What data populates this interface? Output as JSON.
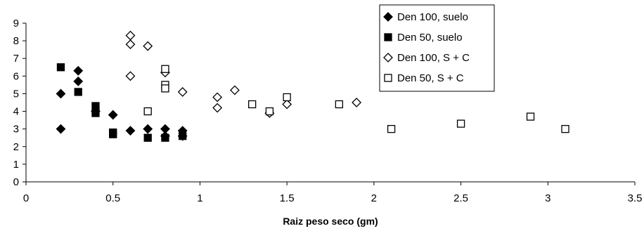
{
  "chart_data": {
    "type": "scatter",
    "title": "",
    "xlabel": "Raiz peso seco (gm)",
    "ylabel": "",
    "xlim": [
      0,
      3.5
    ],
    "ylim": [
      0,
      9
    ],
    "xticks": [
      "0",
      "0.5",
      "1",
      "1.5",
      "2",
      "2.5",
      "3",
      "3.5"
    ],
    "yticks": [
      "0",
      "1",
      "2",
      "3",
      "4",
      "5",
      "6",
      "7",
      "8",
      "9"
    ],
    "grid": false,
    "legend_position": "top-right",
    "series": [
      {
        "name": "Den 100, suelo",
        "marker": "filled-diamond",
        "color": "#000000",
        "points": [
          [
            0.2,
            5.0
          ],
          [
            0.2,
            3.0
          ],
          [
            0.3,
            6.3
          ],
          [
            0.3,
            5.7
          ],
          [
            0.4,
            4.0
          ],
          [
            0.5,
            3.8
          ],
          [
            0.6,
            2.9
          ],
          [
            0.7,
            3.0
          ],
          [
            0.8,
            3.0
          ],
          [
            0.8,
            2.6
          ],
          [
            0.9,
            2.9
          ],
          [
            0.9,
            2.6
          ]
        ]
      },
      {
        "name": "Den 50, suelo",
        "marker": "filled-square",
        "color": "#000000",
        "points": [
          [
            0.2,
            6.5
          ],
          [
            0.3,
            5.1
          ],
          [
            0.4,
            4.3
          ],
          [
            0.4,
            3.9
          ],
          [
            0.5,
            2.8
          ],
          [
            0.5,
            2.7
          ],
          [
            0.7,
            2.5
          ],
          [
            0.8,
            2.5
          ],
          [
            0.9,
            2.6
          ]
        ]
      },
      {
        "name": "Den 100, S + C",
        "marker": "open-diamond",
        "color": "#000000",
        "points": [
          [
            0.6,
            8.3
          ],
          [
            0.6,
            7.8
          ],
          [
            0.7,
            7.7
          ],
          [
            0.6,
            6.0
          ],
          [
            0.8,
            6.2
          ],
          [
            0.9,
            5.1
          ],
          [
            1.1,
            4.8
          ],
          [
            1.1,
            4.2
          ],
          [
            1.2,
            5.2
          ],
          [
            1.4,
            3.9
          ],
          [
            1.5,
            4.4
          ],
          [
            1.9,
            4.5
          ]
        ]
      },
      {
        "name": "Den 50, S + C",
        "marker": "open-square",
        "color": "#000000",
        "points": [
          [
            0.8,
            6.4
          ],
          [
            0.8,
            5.5
          ],
          [
            0.8,
            5.3
          ],
          [
            0.7,
            4.0
          ],
          [
            1.3,
            4.4
          ],
          [
            1.4,
            4.0
          ],
          [
            1.5,
            4.8
          ],
          [
            1.8,
            4.4
          ],
          [
            2.1,
            3.0
          ],
          [
            2.5,
            3.3
          ],
          [
            2.9,
            3.7
          ],
          [
            3.1,
            3.0
          ]
        ]
      }
    ]
  }
}
